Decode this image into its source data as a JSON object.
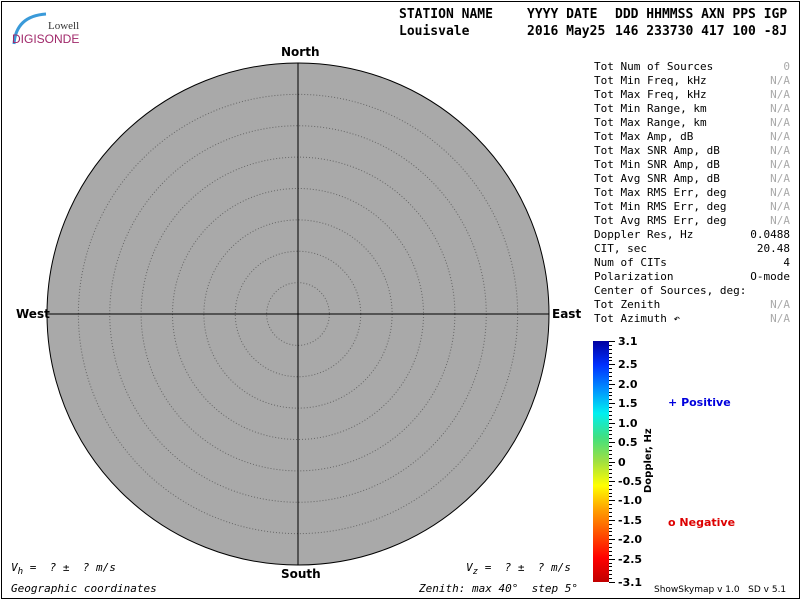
{
  "logo": {
    "line1": "Lowell",
    "line2": "DIGISONDE"
  },
  "header": {
    "labels": [
      "STATION NAME",
      "YYYY DATE",
      "DDD HHMMSS AXN PPS IGP"
    ],
    "values": [
      "Louisvale",
      "2016 May25",
      "146 233730 417 100 -8J"
    ]
  },
  "compass": {
    "north": "North",
    "south": "South",
    "east": "East",
    "west": "West"
  },
  "stats": [
    {
      "label": "Tot Num of Sources",
      "value": "0",
      "muted": true
    },
    {
      "label": "Tot Min Freq, kHz",
      "value": "N/A",
      "muted": true
    },
    {
      "label": "Tot Max Freq, kHz",
      "value": "N/A",
      "muted": true
    },
    {
      "label": "Tot Min Range, km",
      "value": "N/A",
      "muted": true
    },
    {
      "label": "Tot Max Range, km",
      "value": "N/A",
      "muted": true
    },
    {
      "label": "Tot Max Amp, dB",
      "value": "N/A",
      "muted": true
    },
    {
      "label": "Tot Max SNR Amp, dB",
      "value": "N/A",
      "muted": true
    },
    {
      "label": "Tot Min SNR Amp, dB",
      "value": "N/A",
      "muted": true
    },
    {
      "label": "Tot Avg SNR Amp, dB",
      "value": "N/A",
      "muted": true
    },
    {
      "label": "Tot Max RMS Err, deg",
      "value": "N/A",
      "muted": true
    },
    {
      "label": "Tot Min RMS Err, deg",
      "value": "N/A",
      "muted": true
    },
    {
      "label": "Tot Avg RMS Err, deg",
      "value": "N/A",
      "muted": true
    },
    {
      "label": "Doppler Res, Hz",
      "value": "0.0488",
      "muted": false
    },
    {
      "label": "CIT, sec",
      "value": "20.48",
      "muted": false
    },
    {
      "label": "Num of CITs",
      "value": "4",
      "muted": false
    },
    {
      "label": "Polarization",
      "value": "O-mode",
      "muted": false
    },
    {
      "label": "Center of Sources, deg:",
      "value": "",
      "muted": false
    },
    {
      "label": "Tot          Zenith",
      "value": "N/A",
      "muted": true
    },
    {
      "label": "Tot          Azimuth ↶",
      "value": "N/A",
      "muted": true
    }
  ],
  "colorbar": {
    "title": "Doppler, Hz",
    "ticks": [
      "3.1",
      "2.5",
      "2.0",
      "1.5",
      "1.0",
      "0.5",
      "0",
      "-0.5",
      "-1.0",
      "-1.5",
      "-2.0",
      "-2.5",
      "-3.1"
    ],
    "range": [
      -3.1,
      3.1
    ]
  },
  "legend": {
    "positive": "Positive",
    "negative": "Negative",
    "positive_symbol": "+",
    "negative_symbol": "o",
    "positive_color": "#0000dd",
    "negative_color": "#dd0000"
  },
  "footer": {
    "vh": "V",
    "vh_sub": "h",
    "vh_text": " =  ? ±  ? m/s",
    "vz": "V",
    "vz_sub": "z",
    "vz_text": " =  ? ±  ? m/s",
    "coords": "Geographic coordinates",
    "zenith": "Zenith: max 40°  step 5°",
    "version": "ShowSkymap v 1.0   SD v 5.1"
  },
  "skymap": {
    "zenith_max_deg": 40,
    "zenith_step_deg": 5,
    "fill": "#a9a9a9"
  }
}
